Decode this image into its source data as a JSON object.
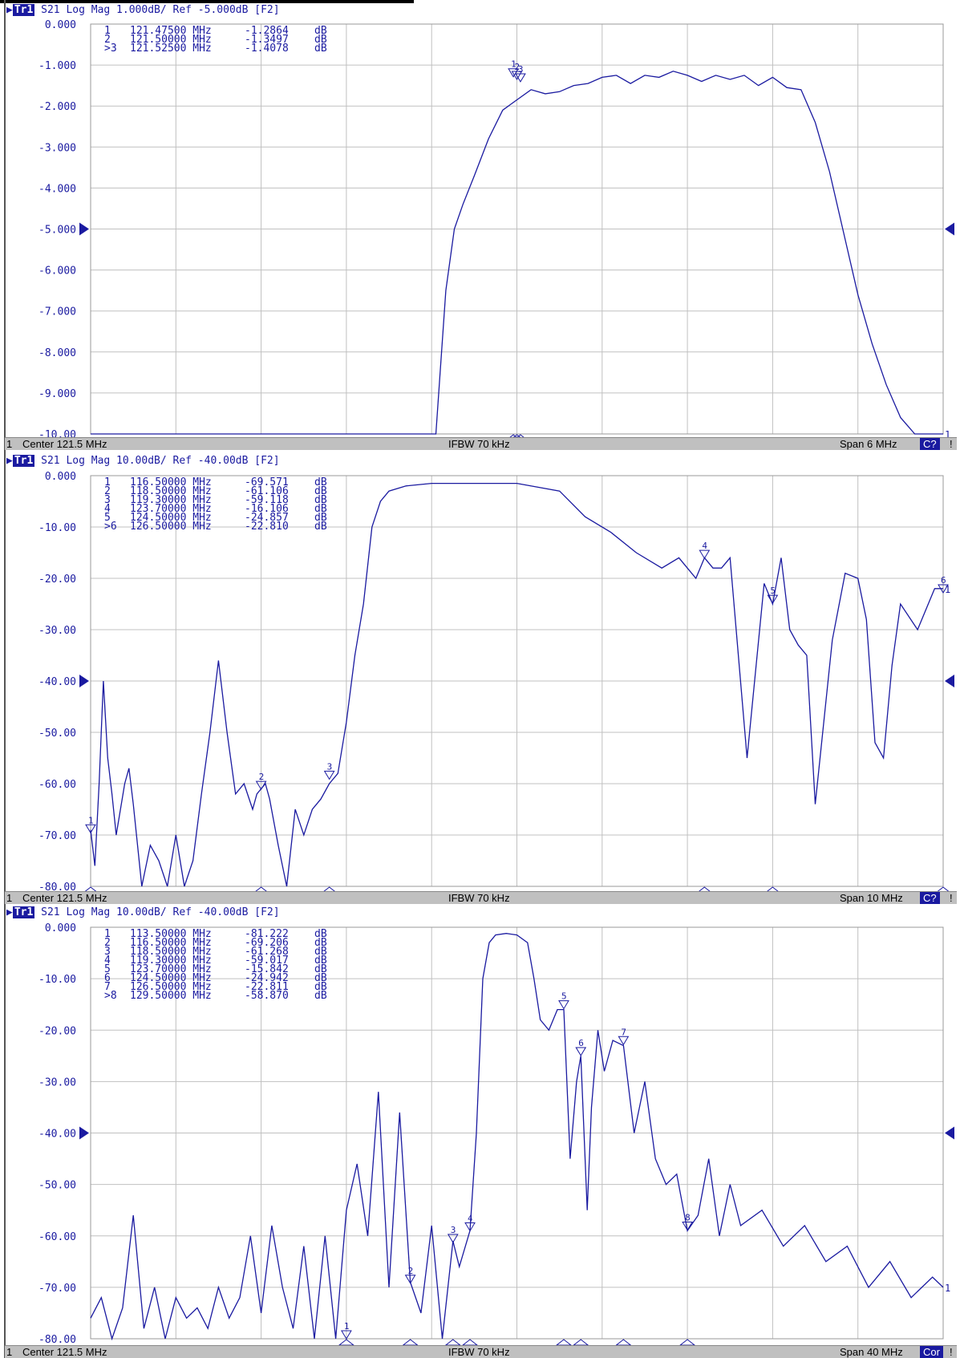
{
  "colors": {
    "trace": "#1a1aa0",
    "grid": "#c0c0c0",
    "label": "#1a1aa0",
    "footer_bg": "#c0c0c0"
  },
  "panels": [
    {
      "header": {
        "trace": "Tr1",
        "text": " S21 Log Mag 1.000dB/ Ref -5.000dB [F2]"
      },
      "markers_table": [
        {
          "id": "1",
          "freq": "121.47500 MHz",
          "val": "-1.2864",
          "unit": "dB"
        },
        {
          "id": "2",
          "freq": "121.50000 MHz",
          "val": "-1.3497",
          "unit": "dB"
        },
        {
          "id": ">3",
          "freq": "121.52500 MHz",
          "val": "-1.4078",
          "unit": "dB"
        }
      ],
      "footer": {
        "ch": "1",
        "center": "Center 121.5 MHz",
        "ifbw": "IFBW 70 kHz",
        "span": "Span 6 MHz",
        "badge": "C?",
        "excl": "!"
      }
    },
    {
      "header": {
        "trace": "Tr1",
        "text": " S21 Log Mag 10.00dB/ Ref -40.00dB [F2]"
      },
      "markers_table": [
        {
          "id": "1",
          "freq": "116.50000 MHz",
          "val": "-69.571",
          "unit": "dB"
        },
        {
          "id": "2",
          "freq": "118.50000 MHz",
          "val": "-61.106",
          "unit": "dB"
        },
        {
          "id": "3",
          "freq": "119.30000 MHz",
          "val": "-59.118",
          "unit": "dB"
        },
        {
          "id": "4",
          "freq": "123.70000 MHz",
          "val": "-16.106",
          "unit": "dB"
        },
        {
          "id": "5",
          "freq": "124.50000 MHz",
          "val": "-24.857",
          "unit": "dB"
        },
        {
          "id": ">6",
          "freq": "126.50000 MHz",
          "val": "-22.810",
          "unit": "dB"
        }
      ],
      "footer": {
        "ch": "1",
        "center": "Center 121.5 MHz",
        "ifbw": "IFBW 70 kHz",
        "span": "Span 10 MHz",
        "badge": "C?",
        "excl": "!"
      }
    },
    {
      "header": {
        "trace": "Tr1",
        "text": " S21 Log Mag 10.00dB/ Ref -40.00dB [F2]"
      },
      "markers_table": [
        {
          "id": "1",
          "freq": "113.50000 MHz",
          "val": "-81.222",
          "unit": "dB"
        },
        {
          "id": "2",
          "freq": "116.50000 MHz",
          "val": "-69.206",
          "unit": "dB"
        },
        {
          "id": "3",
          "freq": "118.50000 MHz",
          "val": "-61.268",
          "unit": "dB"
        },
        {
          "id": "4",
          "freq": "119.30000 MHz",
          "val": "-59.017",
          "unit": "dB"
        },
        {
          "id": "5",
          "freq": "123.70000 MHz",
          "val": "-15.842",
          "unit": "dB"
        },
        {
          "id": "6",
          "freq": "124.50000 MHz",
          "val": "-24.942",
          "unit": "dB"
        },
        {
          "id": "7",
          "freq": "126.50000 MHz",
          "val": "-22.811",
          "unit": "dB"
        },
        {
          "id": ">8",
          "freq": "129.50000 MHz",
          "val": "-58.870",
          "unit": "dB"
        }
      ],
      "footer": {
        "ch": "1",
        "center": "Center 121.5 MHz",
        "ifbw": "IFBW 70 kHz",
        "span": "Span 40 MHz",
        "badge": "Cor",
        "excl": "!"
      }
    }
  ],
  "chart_data": [
    {
      "type": "line",
      "xlim": [
        118.5,
        124.5
      ],
      "ylim": [
        -10,
        0
      ],
      "yticks": [
        "0.000",
        "-1.000",
        "-2.000",
        "-3.000",
        "-4.000",
        "-5.000",
        "-6.000",
        "-7.000",
        "-8.000",
        "-9.000",
        "-10.00"
      ],
      "ref_value": -5,
      "grid": true,
      "series": [
        {
          "x": [
            118.5,
            120.93,
            120.96,
            121.0,
            121.06,
            121.12,
            121.2,
            121.3,
            121.4,
            121.5,
            121.6,
            121.7,
            121.8,
            121.9,
            122.0,
            122.1,
            122.2,
            122.3,
            122.4,
            122.5,
            122.6,
            122.7,
            122.8,
            122.9,
            123.0,
            123.1,
            123.2,
            123.3,
            123.4,
            123.5,
            123.6,
            123.7,
            123.8,
            123.9,
            124.0,
            124.1,
            124.2,
            124.3,
            124.4,
            124.5
          ],
          "y": [
            -10,
            -10,
            -8.5,
            -6.5,
            -5.0,
            -4.4,
            -3.7,
            -2.8,
            -2.1,
            -1.85,
            -1.6,
            -1.7,
            -1.65,
            -1.5,
            -1.45,
            -1.3,
            -1.25,
            -1.45,
            -1.25,
            -1.3,
            -1.15,
            -1.25,
            -1.4,
            -1.25,
            -1.35,
            -1.25,
            -1.5,
            -1.3,
            -1.55,
            -1.6,
            -2.4,
            -3.6,
            -5.1,
            -6.6,
            -7.8,
            -8.8,
            -9.6,
            -10,
            -10,
            -10
          ]
        }
      ],
      "markers": [
        {
          "label": "1",
          "x": 121.475,
          "y": -1.2864
        },
        {
          "label": "2",
          "x": 121.5,
          "y": -1.3497
        },
        {
          "label": "3",
          "x": 121.525,
          "y": -1.4078
        }
      ],
      "end_label": "1"
    },
    {
      "type": "line",
      "xlim": [
        116.5,
        126.5
      ],
      "ylim": [
        -80,
        0
      ],
      "yticks": [
        "0.000",
        "-10.00",
        "-20.00",
        "-30.00",
        "-40.00",
        "-50.00",
        "-60.00",
        "-70.00",
        "-80.00"
      ],
      "ref_value": -40,
      "grid": true,
      "series": [
        {
          "x": [
            116.5,
            116.55,
            116.6,
            116.65,
            116.7,
            116.75,
            116.8,
            116.85,
            116.9,
            116.95,
            117.0,
            117.1,
            117.2,
            117.3,
            117.4,
            117.5,
            117.6,
            117.7,
            117.8,
            117.9,
            118.0,
            118.1,
            118.2,
            118.3,
            118.4,
            118.45,
            118.5,
            118.55,
            118.6,
            118.7,
            118.8,
            118.9,
            119.0,
            119.1,
            119.2,
            119.3,
            119.4,
            119.5,
            119.6,
            119.7,
            119.8,
            119.9,
            120.0,
            120.2,
            120.5,
            121.0,
            121.5,
            122.0,
            122.3,
            122.6,
            122.9,
            123.2,
            123.4,
            123.6,
            123.7,
            123.8,
            123.9,
            124.0,
            124.2,
            124.4,
            124.5,
            124.6,
            124.7,
            124.8,
            124.9,
            125.0,
            125.2,
            125.35,
            125.5,
            125.6,
            125.7,
            125.8,
            125.9,
            126.0,
            126.2,
            126.4,
            126.5
          ],
          "y": [
            -69,
            -76,
            -60,
            -40,
            -55,
            -62,
            -70,
            -65,
            -60,
            -57,
            -64,
            -80,
            -72,
            -75,
            -80,
            -70,
            -80,
            -75,
            -62,
            -50,
            -36,
            -50,
            -62,
            -60,
            -65,
            -62,
            -61,
            -60,
            -63,
            -72,
            -80,
            -65,
            -70,
            -65,
            -63,
            -60,
            -58,
            -48,
            -35,
            -25,
            -10,
            -5,
            -3,
            -2,
            -1.5,
            -1.5,
            -1.5,
            -3,
            -8,
            -11,
            -15,
            -18,
            -16,
            -20,
            -16,
            -18,
            -18,
            -16,
            -55,
            -21,
            -25,
            -16,
            -30,
            -33,
            -35,
            -64,
            -32,
            -19,
            -20,
            -28,
            -52,
            -55,
            -37,
            -25,
            -30,
            -22,
            -22
          ]
        }
      ],
      "markers": [
        {
          "label": "1",
          "x": 116.5,
          "y": -69.571
        },
        {
          "label": "2",
          "x": 118.5,
          "y": -61.106
        },
        {
          "label": "3",
          "x": 119.3,
          "y": -59.118
        },
        {
          "label": "4",
          "x": 123.7,
          "y": -16.106
        },
        {
          "label": "5",
          "x": 124.5,
          "y": -24.857
        },
        {
          "label": "6",
          "x": 126.5,
          "y": -22.81
        }
      ],
      "end_label": "1"
    },
    {
      "type": "line",
      "xlim": [
        101.5,
        141.5
      ],
      "ylim": [
        -80,
        0
      ],
      "yticks": [
        "0.000",
        "-10.00",
        "-20.00",
        "-30.00",
        "-40.00",
        "-50.00",
        "-60.00",
        "-70.00",
        "-80.00"
      ],
      "ref_value": -40,
      "grid": true,
      "series": [
        {
          "x": [
            101.5,
            102.0,
            102.5,
            103.0,
            103.5,
            104.0,
            104.5,
            105.0,
            105.5,
            106.0,
            106.5,
            107.0,
            107.5,
            108.0,
            108.5,
            109.0,
            109.5,
            110.0,
            110.5,
            111.0,
            111.5,
            112.0,
            112.5,
            113.0,
            113.5,
            114.0,
            114.5,
            115.0,
            115.5,
            116.0,
            116.5,
            117.0,
            117.5,
            118.0,
            118.5,
            118.8,
            119.3,
            119.6,
            119.9,
            120.2,
            120.5,
            121.0,
            121.5,
            122.0,
            122.3,
            122.6,
            123.0,
            123.4,
            123.7,
            124.0,
            124.3,
            124.5,
            124.8,
            125.0,
            125.3,
            125.6,
            126.0,
            126.5,
            127.0,
            127.5,
            128.0,
            128.5,
            129.0,
            129.5,
            130.0,
            130.5,
            131.0,
            131.5,
            132.0,
            133.0,
            134.0,
            135.0,
            136.0,
            137.0,
            138.0,
            139.0,
            140.0,
            141.0,
            141.5
          ],
          "y": [
            -76,
            -72,
            -80,
            -74,
            -56,
            -78,
            -70,
            -80,
            -72,
            -76,
            -74,
            -78,
            -70,
            -76,
            -72,
            -60,
            -75,
            -58,
            -70,
            -78,
            -62,
            -80,
            -60,
            -80,
            -55,
            -46,
            -60,
            -32,
            -70,
            -36,
            -69,
            -75,
            -58,
            -80,
            -61,
            -66,
            -59,
            -40,
            -10,
            -3,
            -1.5,
            -1.2,
            -1.5,
            -3,
            -10,
            -18,
            -20,
            -16,
            -16,
            -45,
            -30,
            -25,
            -55,
            -35,
            -20,
            -28,
            -22,
            -23,
            -40,
            -30,
            -45,
            -50,
            -48,
            -59,
            -56,
            -45,
            -60,
            -50,
            -58,
            -55,
            -62,
            -58,
            -65,
            -62,
            -70,
            -65,
            -72,
            -68,
            -70
          ]
        }
      ],
      "markers": [
        {
          "label": "1",
          "x": 113.5,
          "y": -81.222
        },
        {
          "label": "2",
          "x": 116.5,
          "y": -69.206
        },
        {
          "label": "3",
          "x": 118.5,
          "y": -61.268
        },
        {
          "label": "4",
          "x": 119.3,
          "y": -59.017
        },
        {
          "label": "5",
          "x": 123.7,
          "y": -15.842
        },
        {
          "label": "6",
          "x": 124.5,
          "y": -24.942
        },
        {
          "label": "7",
          "x": 126.5,
          "y": -22.811
        },
        {
          "label": "8",
          "x": 129.5,
          "y": -58.87
        }
      ],
      "end_label": "1"
    }
  ]
}
